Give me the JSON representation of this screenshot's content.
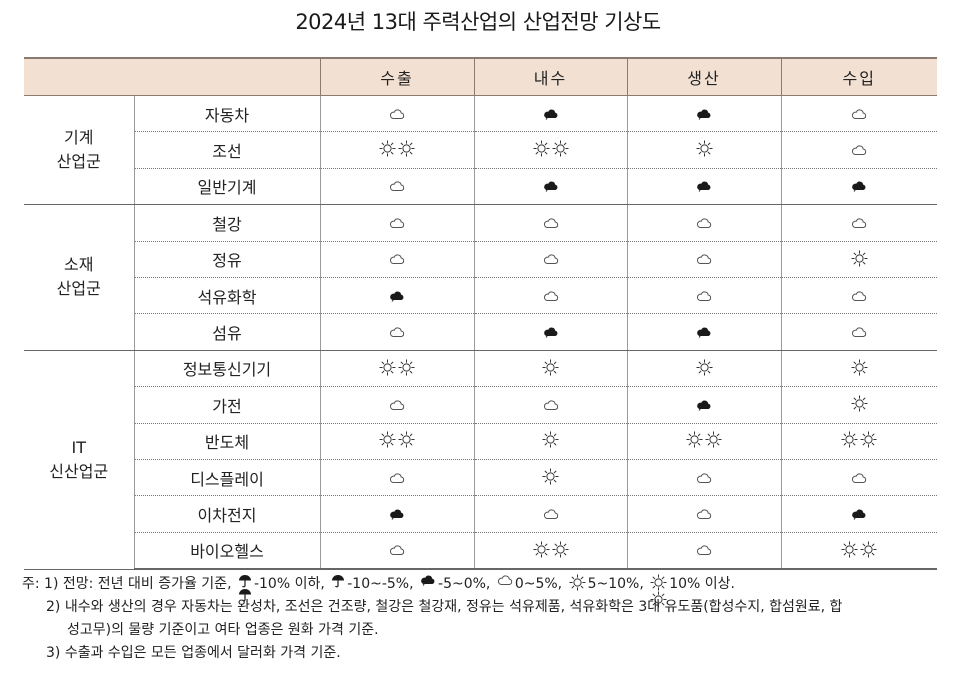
{
  "title": "2024년 13대 주력산업의 산업전망 기상도",
  "columns": [
    "수출",
    "내수",
    "생산",
    "수입"
  ],
  "groups": [
    {
      "label_lines": [
        "기계",
        "산업군"
      ],
      "rows": [
        {
          "name": "자동차",
          "values": [
            "cloud",
            "rain-cloud",
            "rain-cloud",
            "cloud"
          ]
        },
        {
          "name": "조선",
          "values": [
            "sun2",
            "sun2",
            "sun",
            "cloud"
          ]
        },
        {
          "name": "일반기계",
          "values": [
            "cloud",
            "rain-cloud",
            "rain-cloud",
            "rain-cloud"
          ]
        }
      ]
    },
    {
      "label_lines": [
        "소재",
        "산업군"
      ],
      "rows": [
        {
          "name": "철강",
          "values": [
            "cloud",
            "cloud",
            "cloud",
            "cloud"
          ]
        },
        {
          "name": "정유",
          "values": [
            "cloud",
            "cloud",
            "cloud",
            "sun"
          ]
        },
        {
          "name": "석유화학",
          "values": [
            "rain-cloud",
            "cloud",
            "cloud",
            "cloud"
          ]
        },
        {
          "name": "섬유",
          "values": [
            "cloud",
            "rain-cloud",
            "rain-cloud",
            "cloud"
          ]
        }
      ]
    },
    {
      "label_lines": [
        "IT",
        "신산업군"
      ],
      "rows": [
        {
          "name": "정보통신기기",
          "values": [
            "sun2",
            "sun",
            "sun",
            "sun"
          ]
        },
        {
          "name": "가전",
          "values": [
            "cloud",
            "cloud",
            "rain-cloud",
            "sun"
          ]
        },
        {
          "name": "반도체",
          "values": [
            "sun2",
            "sun",
            "sun2",
            "sun2"
          ]
        },
        {
          "name": "디스플레이",
          "values": [
            "cloud",
            "sun",
            "cloud",
            "cloud"
          ]
        },
        {
          "name": "이차전지",
          "values": [
            "rain-cloud",
            "cloud",
            "cloud",
            "rain-cloud"
          ]
        },
        {
          "name": "바이오헬스",
          "values": [
            "cloud",
            "sun2",
            "cloud",
            "sun2"
          ]
        }
      ]
    }
  ],
  "notes": {
    "prefix": "주: 1) 전망: 전년 대비 증가율 기준,",
    "legend": [
      {
        "icon": "umbrella2",
        "text": "-10% 이하,"
      },
      {
        "icon": "umbrella",
        "text": "-10~-5%,"
      },
      {
        "icon": "rain-cloud",
        "text": "-5~0%,"
      },
      {
        "icon": "cloud",
        "text": "0~5%,"
      },
      {
        "icon": "sun",
        "text": "5~10%,"
      },
      {
        "icon": "sun2",
        "text": "10% 이상."
      }
    ],
    "note2_line1": "2) 내수와 생산의 경우 자동차는 완성차, 조선은 건조량, 철강은 철강재, 정유는 석유제품, 석유화학은 3대 유도품(합성수지, 합섬원료, 합",
    "note2_line2": "성고무)의 물량 기준이고 여타 업종은 원화 가격 기준.",
    "note3": "3) 수출과 수입은 모든 업종에서 달러화 가격 기준."
  }
}
